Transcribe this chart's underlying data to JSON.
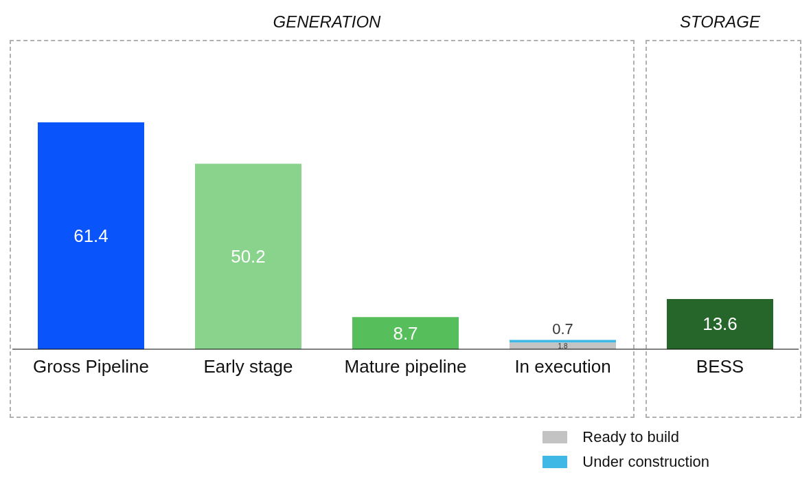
{
  "chart_data": {
    "type": "bar",
    "categories": [
      "Gross Pipeline",
      "Early stage",
      "Mature pipeline",
      "In execution",
      "BESS"
    ],
    "stacked": true,
    "data_labels": true,
    "legend": "bottom right",
    "grid": false,
    "annotations": [
      "GENERATION",
      "STORAGE"
    ],
    "series": [
      {
        "values": [
          61.4,
          50.2,
          8.7,
          null,
          13.6
        ],
        "colors": [
          "#0a55fb",
          "#89d38d",
          "#56bf5b",
          "#c3c3c3",
          "#27662b"
        ]
      },
      {
        "name": "Ready to build",
        "color": "#c3c3c3",
        "values": [
          null,
          null,
          null,
          1.8,
          null
        ]
      },
      {
        "name": "Under construction",
        "color": "#3fb8e6",
        "values": [
          null,
          null,
          null,
          0.7,
          null
        ]
      }
    ]
  }
}
